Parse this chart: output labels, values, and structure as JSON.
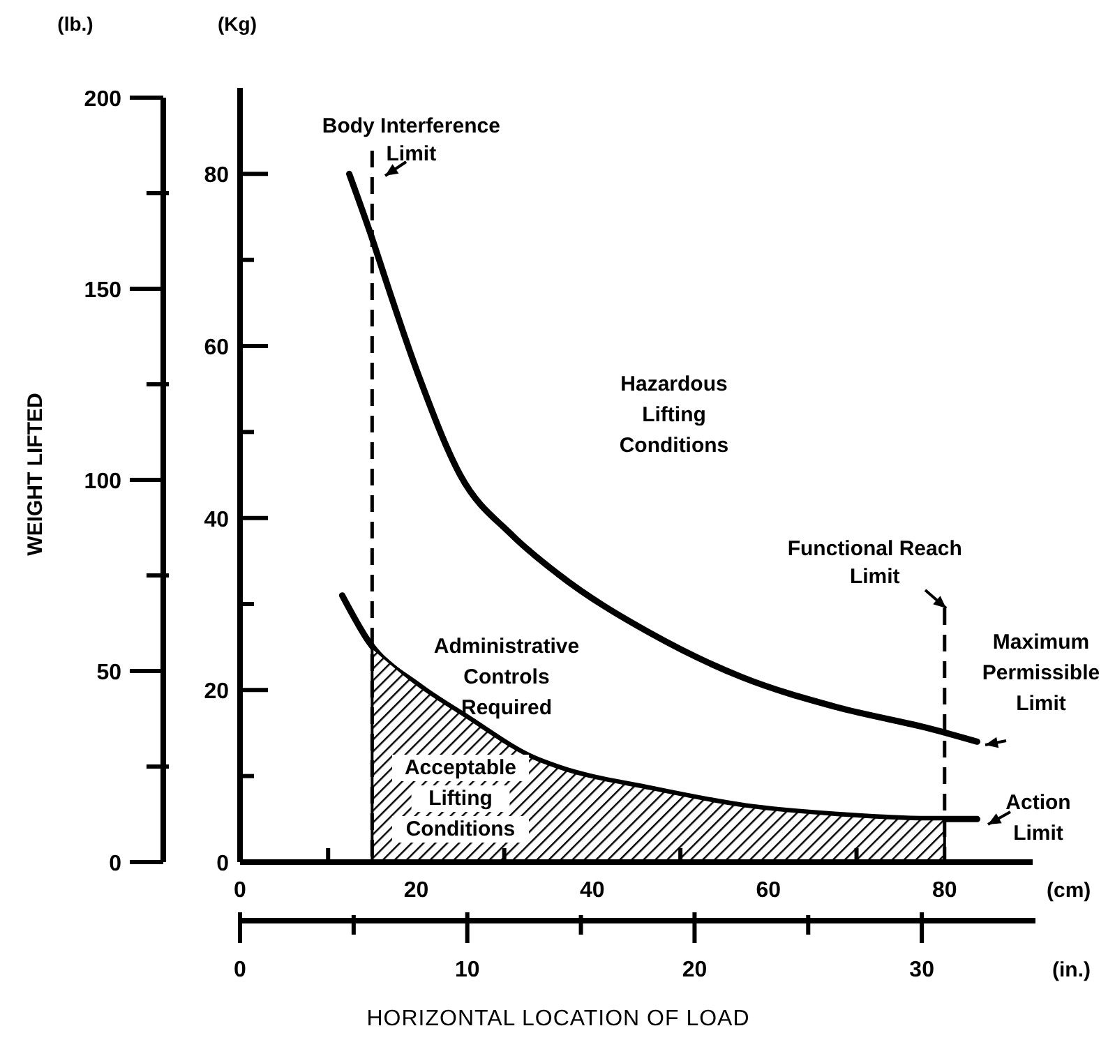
{
  "chart_data": {
    "type": "line",
    "ylabel": "(Kg)",
    "y2label": "(lb.)",
    "xlabel": "(cm)",
    "x2label": "(in.)",
    "xlim": [
      0,
      90
    ],
    "xticks": [
      0,
      {
        "value": 10,
        "label": null
      },
      20,
      {
        "value": 30,
        "label": null
      },
      40,
      {
        "value": 50,
        "label": null
      },
      60,
      {
        "value": 70,
        "label": null
      },
      80
    ],
    "x2lim": [
      0,
      35
    ],
    "x2ticks": [
      0,
      10,
      20,
      30
    ],
    "ylim": [
      0,
      90
    ],
    "yticks": [
      0,
      {
        "value": 10,
        "label": null
      },
      20,
      {
        "value": 30,
        "label": null
      },
      40,
      {
        "value": 50,
        "label": null
      },
      60,
      {
        "value": 70,
        "label": null
      },
      80
    ],
    "y2lim": [
      0,
      200
    ],
    "y2ticks": [
      0,
      50,
      100,
      150,
      200
    ],
    "line_style": "solid",
    "series": [
      {
        "name": "Maximum Permissible Limit",
        "color": "#000000",
        "x": [
          12.4,
          15,
          16.6,
          20.3,
          25,
          30.9,
          36.1,
          46.8,
          57,
          67.8,
          78.4,
          83.7
        ],
        "values": [
          80,
          72.5,
          67.5,
          56.5,
          45,
          38,
          33.5,
          26.5,
          21.5,
          18,
          15.5,
          14
        ]
      },
      {
        "name": "Action Limit",
        "color": "#000000",
        "x": [
          11.6,
          14.7,
          20.3,
          25.5,
          33.5,
          36.1,
          46.8,
          57.4,
          67.8,
          78.4,
          83.7
        ],
        "values": [
          31,
          25.5,
          20.5,
          17,
          12,
          11,
          8.5,
          6.5,
          5.5,
          5,
          5
        ]
      },
      {
        "type": "area",
        "color": "#000000",
        "x": [
          15,
          20.3,
          25.5,
          33.5,
          36.1,
          46.8,
          57.4,
          67.8,
          78.4,
          80
        ],
        "values": [
          25,
          20.5,
          17,
          12,
          11,
          8.5,
          6.5,
          5.5,
          5,
          5
        ]
      }
    ],
    "ref_lines": [
      {
        "axis": "x",
        "value": 15,
        "label": "Body Interference Limit",
        "line_style": "dashed"
      },
      {
        "axis": "x",
        "value": 80,
        "label": "Functional Reach Limit",
        "line_style": "dashed"
      }
    ],
    "annotations": [
      "Hazardous Lifting Conditions",
      "Administrative Controls Required",
      "Acceptable Lifting Conditions",
      "WEIGHT LIFTED",
      "HORIZONTAL LOCATION OF LOAD"
    ]
  }
}
